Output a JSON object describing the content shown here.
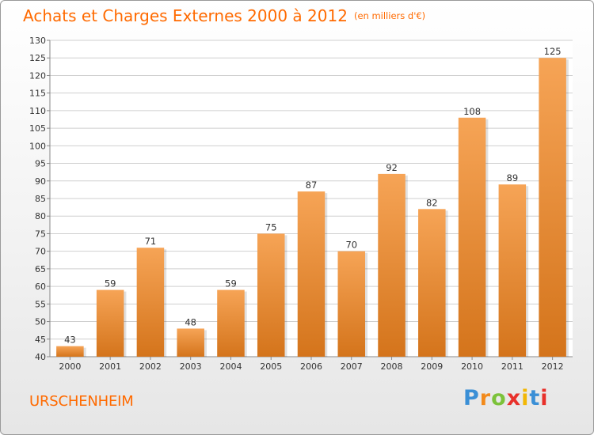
{
  "header": {
    "title": "Achats et Charges Externes 2000 à 2012",
    "unit": "(en milliers d'€)"
  },
  "commune": "URSCHENHEIM",
  "logo": {
    "text": "Proxiti",
    "letter_colors": [
      "#3a8fd6",
      "#f28a1b",
      "#7cc23a",
      "#e8312b",
      "#f2b705",
      "#3a8fd6",
      "#e8312b"
    ]
  },
  "colors": {
    "bar_light": "#f6a456",
    "bar_dark": "#d4741b",
    "accent": "#ff6a00",
    "grid": "#cfcfcf"
  },
  "chart_data": {
    "type": "bar",
    "title": "Achats et Charges Externes 2000 à 2012",
    "subtitle": "(en milliers d'€)",
    "categories": [
      "2000",
      "2001",
      "2002",
      "2003",
      "2004",
      "2005",
      "2006",
      "2007",
      "2008",
      "2009",
      "2010",
      "2011",
      "2012"
    ],
    "values": [
      43,
      59,
      71,
      48,
      59,
      75,
      87,
      70,
      92,
      82,
      108,
      89,
      125
    ],
    "ylim": [
      40,
      130
    ],
    "ytick_step": 5,
    "grid": true,
    "data_labels": true
  }
}
